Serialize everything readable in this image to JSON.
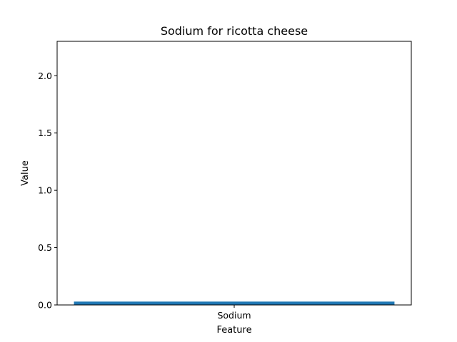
{
  "chart_data": {
    "type": "bar",
    "title": "Sodium for ricotta cheese",
    "xlabel": "Feature",
    "ylabel": "Value",
    "categories": [
      "Sodium"
    ],
    "values": [
      0.02
    ],
    "ylim": [
      0,
      2.3
    ],
    "yticks": [
      0.0,
      0.5,
      1.0,
      1.5,
      2.0
    ],
    "ytick_labels": [
      "0.0",
      "0.5",
      "1.0",
      "1.5",
      "2.0"
    ],
    "grid": false,
    "legend": "none",
    "bar_color": "#1f77b4"
  }
}
